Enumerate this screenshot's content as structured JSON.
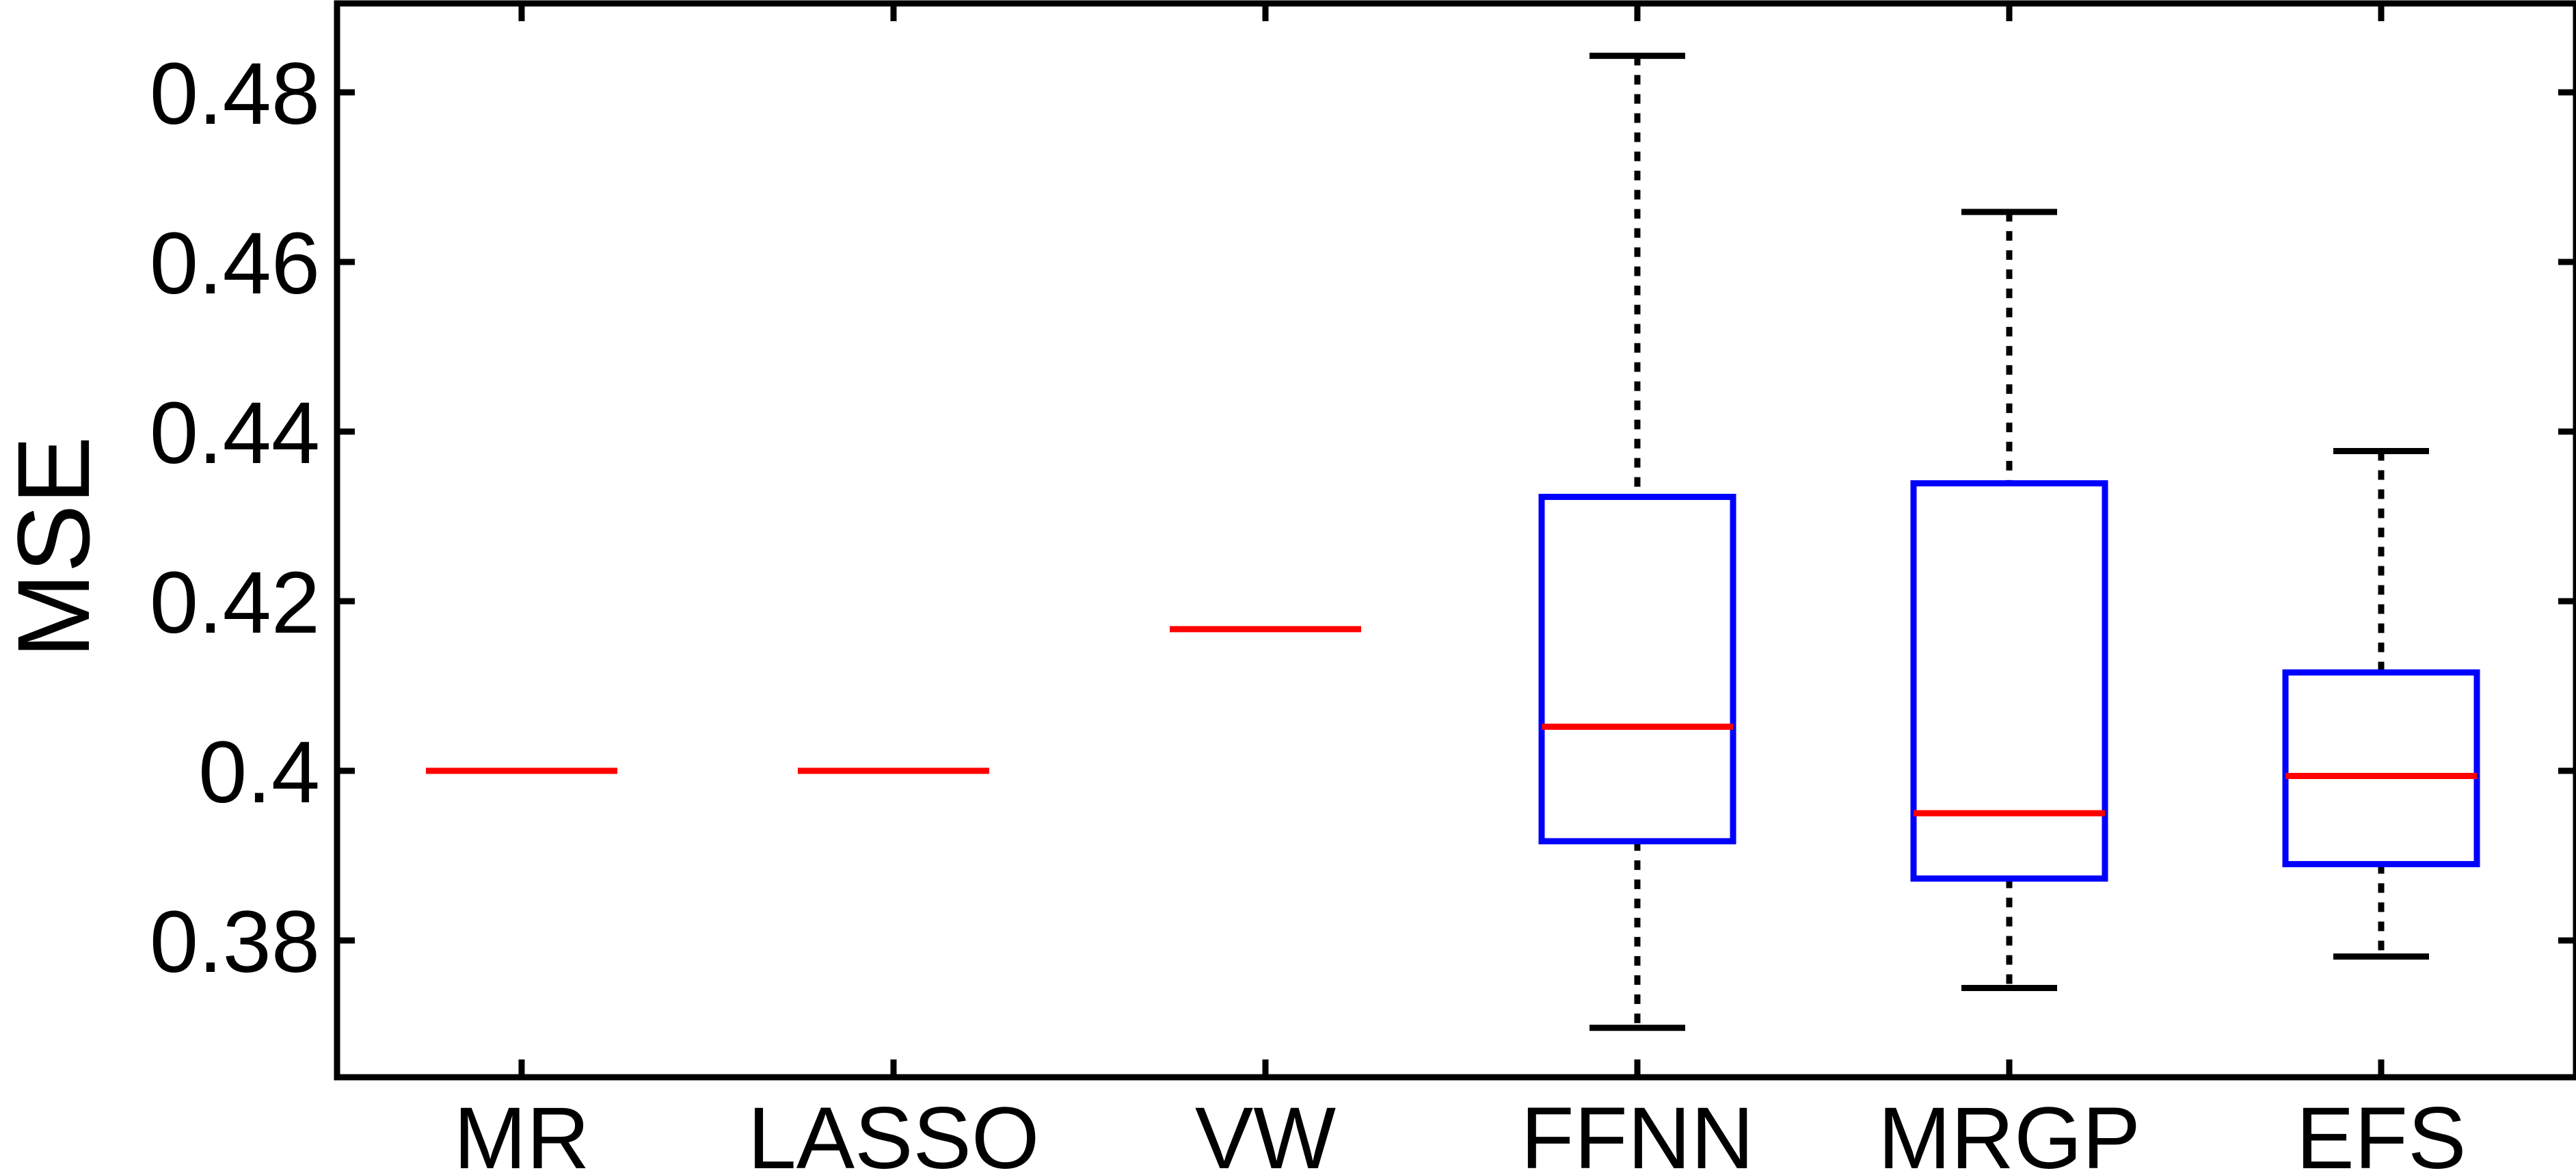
{
  "chart_data": {
    "type": "boxplot",
    "title": "",
    "xlabel": "",
    "ylabel": "MSE",
    "ylim": [
      0.3632,
      0.489
    ],
    "yticks": [
      0.38,
      0.4,
      0.42,
      0.44,
      0.46,
      0.48
    ],
    "ytick_labels": [
      "0.38",
      "0.4",
      "0.42",
      "0.44",
      "0.46",
      "0.48"
    ],
    "categories": [
      "MR",
      "LASSO",
      "VW",
      "FFNN",
      "MRGP",
      "EFS"
    ],
    "boxes": [
      {
        "label": "MR",
        "median": 0.4
      },
      {
        "label": "LASSO",
        "median": 0.4
      },
      {
        "label": "VW",
        "median": 0.4167
      },
      {
        "label": "FFNN",
        "whisker_low": 0.3697,
        "q1": 0.3917,
        "median": 0.4052,
        "q3": 0.4323,
        "whisker_high": 0.4843
      },
      {
        "label": "MRGP",
        "whisker_low": 0.3744,
        "q1": 0.3873,
        "median": 0.395,
        "q3": 0.4339,
        "whisker_high": 0.4659
      },
      {
        "label": "EFS",
        "whisker_low": 0.3781,
        "q1": 0.389,
        "median": 0.3994,
        "q3": 0.4116,
        "whisker_high": 0.4377
      }
    ],
    "grid": false,
    "colors": {
      "box": "#0000ff",
      "median": "#ff0000",
      "whisker": "#000000",
      "axis": "#000000"
    }
  }
}
